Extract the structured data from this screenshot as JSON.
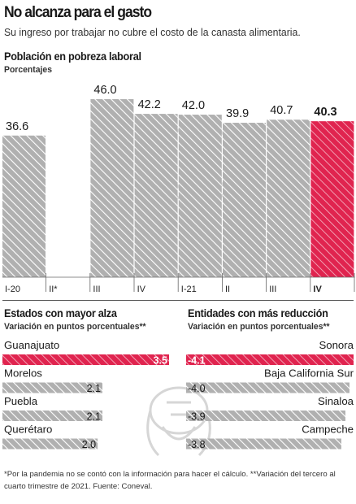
{
  "header": {
    "title": "No alcanza para el gasto",
    "subtitle": "Su ingreso por trabajar no cubre el costo de la canasta alimentaria."
  },
  "main_chart": {
    "title": "Población en pobreza laboral",
    "subtitle": "Porcentajes"
  },
  "states_rise": {
    "title": "Estados con mayor alza",
    "subtitle": "Variación en puntos porcentuales**"
  },
  "states_drop": {
    "title": "Entidades con más reducción",
    "subtitle": "Variación en puntos porcentuales**"
  },
  "footnote": "*Por la pandemia no se contó con la información para hacer el cálculo. **Variación del tercero al cuarto trimestre de 2021. Fuente: Coneval.",
  "colors": {
    "highlight": "#e0244f",
    "hatch_bg": "#b0b0b0",
    "hatch_line": "#ffffff"
  },
  "chart_data": [
    {
      "type": "bar",
      "title": "Población en pobreza laboral",
      "subtitle": "Porcentajes",
      "categories": [
        "I-20",
        "II*",
        "III",
        "IV",
        "I-21",
        "II",
        "III",
        "IV"
      ],
      "values": [
        36.6,
        null,
        46.0,
        42.2,
        42.0,
        39.9,
        40.7,
        40.3
      ],
      "value_labels": [
        "36.6",
        "",
        "46.0",
        "42.2",
        "42.0",
        "39.9",
        "40.7",
        "40.3"
      ],
      "highlight_index": 7,
      "ylim": [
        0,
        46.0
      ]
    },
    {
      "type": "bar",
      "orientation": "horizontal",
      "title": "Estados con mayor alza",
      "subtitle": "Variación en puntos porcentuales**",
      "categories": [
        "Guanajuato",
        "Morelos",
        "Puebla",
        "Querétaro"
      ],
      "values": [
        3.5,
        2.1,
        2.1,
        2.0
      ],
      "value_labels": [
        "3.5",
        "2.1",
        "2.1",
        "2.0"
      ],
      "highlight_index": 0,
      "xlim": [
        0,
        3.5
      ]
    },
    {
      "type": "bar",
      "orientation": "horizontal",
      "title": "Entidades con más reducción",
      "subtitle": "Variación en puntos porcentuales**",
      "categories": [
        "Sonora",
        "Baja California Sur",
        "Sinaloa",
        "Campeche"
      ],
      "values": [
        -4.1,
        -4.0,
        -3.9,
        -3.8
      ],
      "value_labels": [
        "-4.1",
        "-4.0",
        "-3.9",
        "-3.8"
      ],
      "highlight_index": 0,
      "xlim": [
        -4.1,
        0
      ]
    }
  ]
}
